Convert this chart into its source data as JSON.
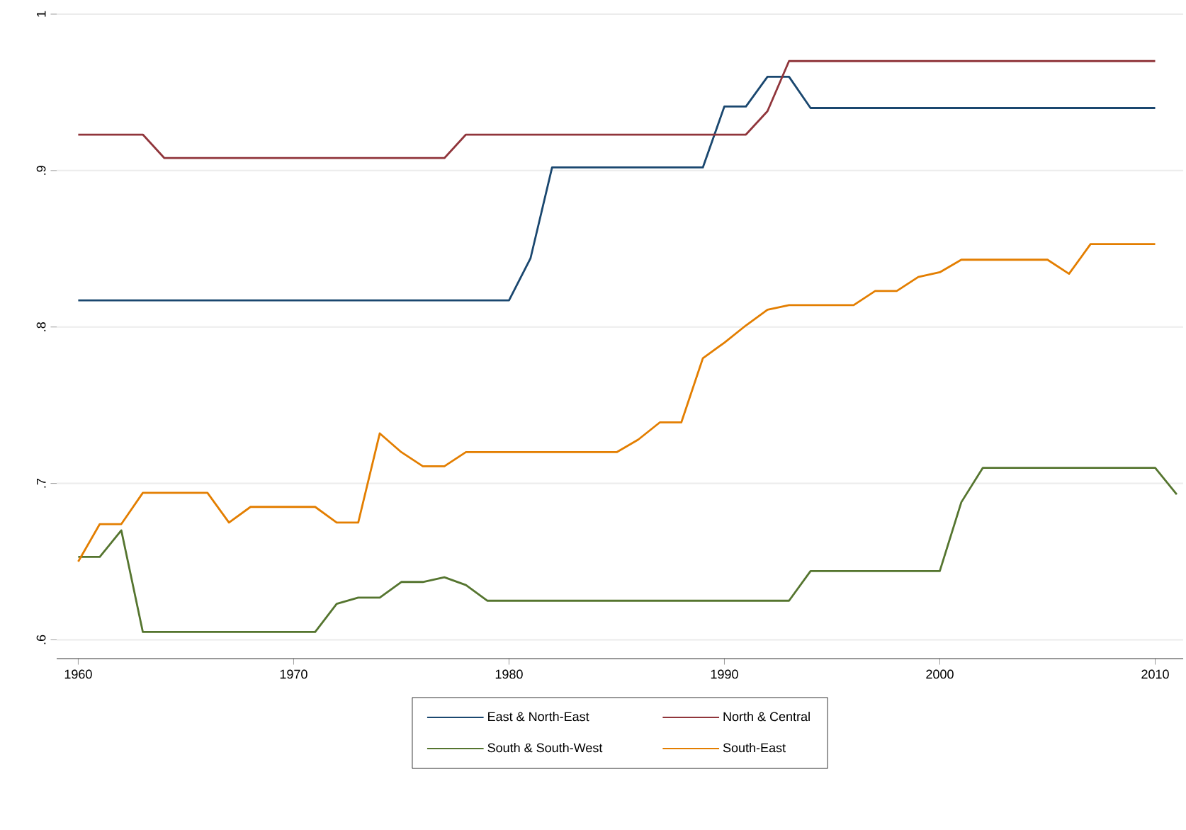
{
  "chart_data": {
    "type": "line",
    "x": [
      1960,
      1961,
      1962,
      1963,
      1964,
      1965,
      1966,
      1967,
      1968,
      1969,
      1970,
      1971,
      1972,
      1973,
      1974,
      1975,
      1976,
      1977,
      1978,
      1979,
      1980,
      1981,
      1982,
      1983,
      1984,
      1985,
      1986,
      1987,
      1988,
      1989,
      1990,
      1991,
      1992,
      1993,
      1994,
      1995,
      1996,
      1997,
      1998,
      1999,
      2000,
      2001,
      2002,
      2003,
      2004,
      2005,
      2006,
      2007,
      2008,
      2009,
      2010,
      2011
    ],
    "series": [
      {
        "name": "East & North-East",
        "color": "#1a476f",
        "values": [
          0.817,
          0.817,
          0.817,
          0.817,
          0.817,
          0.817,
          0.817,
          0.817,
          0.817,
          0.817,
          0.817,
          0.817,
          0.817,
          0.817,
          0.817,
          0.817,
          0.817,
          0.817,
          0.817,
          0.817,
          0.817,
          0.844,
          0.902,
          0.902,
          0.902,
          0.902,
          0.902,
          0.902,
          0.902,
          0.902,
          0.941,
          0.941,
          0.96,
          0.96,
          0.94,
          0.94,
          0.94,
          0.94,
          0.94,
          0.94,
          0.94,
          0.94,
          0.94,
          0.94,
          0.94,
          0.94,
          0.94,
          0.94,
          0.94,
          0.94,
          0.94,
          null
        ]
      },
      {
        "name": "North & Central",
        "color": "#90353b",
        "values": [
          0.923,
          0.923,
          0.923,
          0.923,
          0.908,
          0.908,
          0.908,
          0.908,
          0.908,
          0.908,
          0.908,
          0.908,
          0.908,
          0.908,
          0.908,
          0.908,
          0.908,
          0.908,
          0.923,
          0.923,
          0.923,
          0.923,
          0.923,
          0.923,
          0.923,
          0.923,
          0.923,
          0.923,
          0.923,
          0.923,
          0.923,
          0.923,
          0.938,
          0.97,
          0.97,
          0.97,
          0.97,
          0.97,
          0.97,
          0.97,
          0.97,
          0.97,
          0.97,
          0.97,
          0.97,
          0.97,
          0.97,
          0.97,
          0.97,
          0.97,
          0.97,
          null
        ]
      },
      {
        "name": "South & South-West",
        "color": "#55752f",
        "values": [
          0.653,
          0.653,
          0.67,
          0.605,
          0.605,
          0.605,
          0.605,
          0.605,
          0.605,
          0.605,
          0.605,
          0.605,
          0.623,
          0.627,
          0.627,
          0.637,
          0.637,
          0.64,
          0.635,
          0.625,
          0.625,
          0.625,
          0.625,
          0.625,
          0.625,
          0.625,
          0.625,
          0.625,
          0.625,
          0.625,
          0.625,
          0.625,
          0.625,
          0.625,
          0.644,
          0.644,
          0.644,
          0.644,
          0.644,
          0.644,
          0.644,
          0.688,
          0.71,
          0.71,
          0.71,
          0.71,
          0.71,
          0.71,
          0.71,
          0.71,
          0.71,
          0.693
        ]
      },
      {
        "name": "South-East",
        "color": "#e37e00",
        "values": [
          0.65,
          0.674,
          0.674,
          0.694,
          0.694,
          0.694,
          0.694,
          0.675,
          0.685,
          0.685,
          0.685,
          0.685,
          0.675,
          0.675,
          0.732,
          0.72,
          0.711,
          0.711,
          0.72,
          0.72,
          0.72,
          0.72,
          0.72,
          0.72,
          0.72,
          0.72,
          0.728,
          0.739,
          0.739,
          0.78,
          0.79,
          0.801,
          0.811,
          0.814,
          0.814,
          0.814,
          0.814,
          0.823,
          0.823,
          0.832,
          0.835,
          0.843,
          0.843,
          0.843,
          0.843,
          0.843,
          0.834,
          0.853,
          0.853,
          0.853,
          0.853,
          null
        ]
      }
    ],
    "xlim": [
      1959,
      2011.3
    ],
    "ylim": [
      0.588,
      1
    ],
    "xticks": [
      1960,
      1970,
      1980,
      1990,
      2000,
      2010
    ],
    "yticks": [
      {
        "value": 0.6,
        "label": ".6"
      },
      {
        "value": 0.7,
        "label": ".7"
      },
      {
        "value": 0.8,
        "label": ".8"
      },
      {
        "value": 0.9,
        "label": ".9"
      },
      {
        "value": 1,
        "label": "1"
      }
    ],
    "grid": "y",
    "legend": "bottom",
    "marker": "none",
    "line_style": "solid"
  }
}
